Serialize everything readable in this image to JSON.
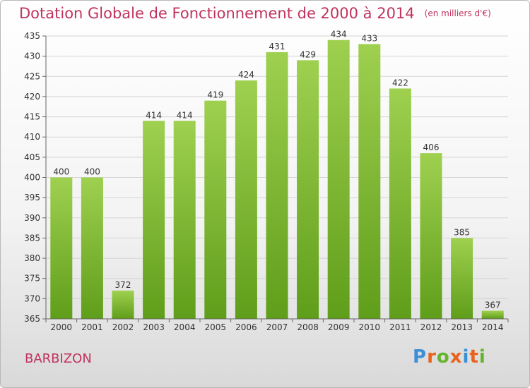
{
  "title": "Dotation Globale de Fonctionnement de 2000 à 2014",
  "unit": "(en milliers d'€)",
  "commune": "BARBIZON",
  "brand": {
    "text": "Proxiti",
    "letter_colors": [
      "#3a8fd6",
      "#e8641e",
      "#66b32e",
      "#e8641e",
      "#3a8fd6",
      "#e8641e",
      "#66b32e"
    ]
  },
  "chart_data": {
    "type": "bar",
    "title": "Dotation Globale de Fonctionnement de 2000 à 2014",
    "subtitle": "(en milliers d'€)",
    "categories": [
      "2000",
      "2001",
      "2002",
      "2003",
      "2004",
      "2005",
      "2006",
      "2007",
      "2008",
      "2009",
      "2010",
      "2011",
      "2012",
      "2013",
      "2014"
    ],
    "values": [
      400,
      400,
      372,
      414,
      414,
      419,
      424,
      431,
      429,
      434,
      433,
      422,
      406,
      385,
      367
    ],
    "ylim": [
      365,
      435
    ],
    "yticks": [
      365,
      370,
      375,
      380,
      385,
      390,
      395,
      400,
      405,
      410,
      415,
      420,
      425,
      430,
      435
    ],
    "grid": true,
    "bar_color_top": "#9fd050",
    "bar_color_bottom": "#5f9e1a"
  }
}
